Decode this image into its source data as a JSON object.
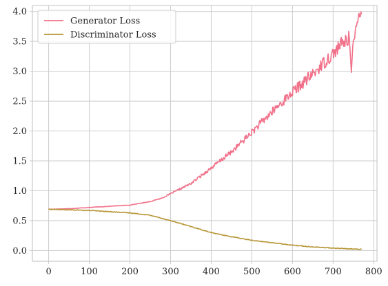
{
  "chart_data": {
    "type": "line",
    "title": "",
    "xlabel": "",
    "ylabel": "",
    "xlim": [
      -40,
      808
    ],
    "ylim": [
      -0.18,
      4.1
    ],
    "xticks": [
      0,
      100,
      200,
      300,
      400,
      500,
      600,
      700,
      800
    ],
    "xtick_labels": [
      "0",
      "100",
      "200",
      "300",
      "400",
      "500",
      "600",
      "700",
      "800"
    ],
    "yticks": [
      0.0,
      0.5,
      1.0,
      1.5,
      2.0,
      2.5,
      3.0,
      3.5,
      4.0
    ],
    "ytick_labels": [
      "0.0",
      "0.5",
      "1.0",
      "1.5",
      "2.0",
      "2.5",
      "3.0",
      "3.5",
      "4.0"
    ],
    "grid": true,
    "legend_position": "top-left",
    "series": [
      {
        "name": "Generator Loss",
        "color": "#f1718a",
        "x": [
          0,
          50,
          100,
          150,
          200,
          250,
          280,
          300,
          350,
          400,
          450,
          500,
          550,
          600,
          650,
          700,
          720,
          740,
          745,
          750,
          770
        ],
        "y": [
          0.69,
          0.7,
          0.72,
          0.74,
          0.76,
          0.82,
          0.88,
          0.95,
          1.12,
          1.38,
          1.65,
          1.98,
          2.32,
          2.65,
          2.95,
          3.3,
          3.45,
          3.55,
          2.98,
          3.62,
          3.95
        ]
      },
      {
        "name": "Discriminator Loss",
        "color": "#b79636",
        "x": [
          0,
          50,
          100,
          150,
          200,
          250,
          300,
          350,
          400,
          450,
          500,
          550,
          600,
          650,
          700,
          770
        ],
        "y": [
          0.69,
          0.68,
          0.67,
          0.65,
          0.63,
          0.59,
          0.5,
          0.4,
          0.3,
          0.23,
          0.17,
          0.13,
          0.09,
          0.06,
          0.04,
          0.02
        ]
      }
    ]
  }
}
